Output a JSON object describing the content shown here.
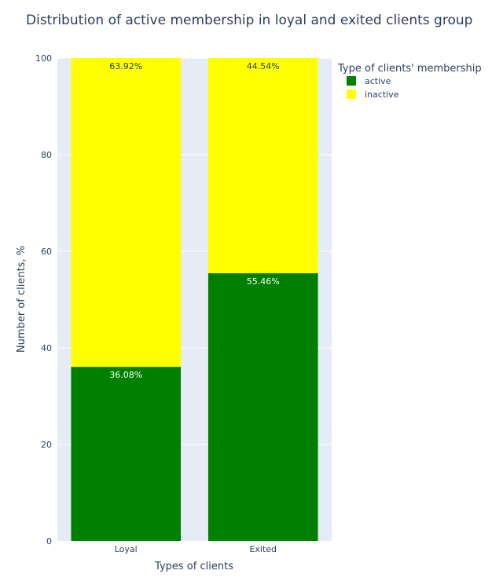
{
  "chart_data": {
    "type": "bar",
    "stacked": true,
    "title": "Distribution of active membership in loyal and exited clients group",
    "xlabel": "Types of clients",
    "ylabel": "Number of clients, %",
    "ylim": [
      0,
      100
    ],
    "yticks": [
      0,
      20,
      40,
      60,
      80,
      100
    ],
    "categories": [
      "Loyal",
      "Exited"
    ],
    "series": [
      {
        "name": "active",
        "values": [
          36.08,
          55.46
        ],
        "labels": [
          "36.08%",
          "55.46%"
        ],
        "color": "#008000",
        "label_color": "#ffffff"
      },
      {
        "name": "inactive",
        "values": [
          63.92,
          44.54
        ],
        "labels": [
          "63.92%",
          "44.54%"
        ],
        "color": "#ffff00",
        "label_color": "#2a3f5f"
      }
    ],
    "legend": {
      "title": "Type of clients' membership",
      "placement": "top-right"
    },
    "grid": true,
    "plot_background": "#e5ecf6"
  }
}
